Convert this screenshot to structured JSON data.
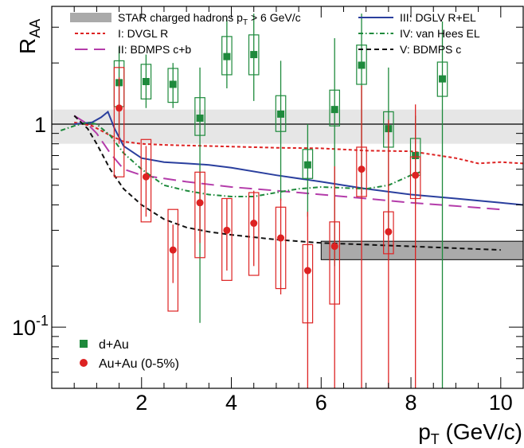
{
  "chart_data": {
    "type": "scatter",
    "xlabel": {
      "main": "p",
      "sub": "T",
      "rest": " (GeV/c)"
    },
    "ylabel": {
      "main": "R",
      "sub": "AA"
    },
    "xlim": [
      0,
      10.5
    ],
    "ylim": [
      0.05,
      3.8
    ],
    "y_scale": "log",
    "x_ticks": [
      2,
      4,
      6,
      8,
      10
    ],
    "x_tick_labels": [
      "2",
      "4",
      "6",
      "8",
      "10"
    ],
    "y_ticks": [
      {
        "value": 0.1,
        "base": "10",
        "exp": "-1"
      },
      {
        "value": 1,
        "base": "1",
        "exp": ""
      }
    ],
    "reference_line": 1,
    "normalization_band": {
      "x_start": 0,
      "x_end": 10.5,
      "ymin": 0.8,
      "ymax": 1.18
    },
    "star_band": {
      "label": "STAR charged hadrons p",
      "label_sub": "T",
      "label_rest": " > 6 GeV/c",
      "x_start": 6,
      "x_end": 10.5,
      "ymin": 0.215,
      "ymax": 0.265,
      "color": "#aaaaaa"
    },
    "series": [
      {
        "name": "d+Au",
        "kind": "points",
        "marker": "square",
        "color": "#1e8a3c",
        "points": [
          {
            "x": 1.5,
            "y": 1.6,
            "err_lo": 0.85,
            "err_hi": 2.4,
            "sys_lo": 1.22,
            "sys_hi": 2.05,
            "box_w": 0.22
          },
          {
            "x": 2.1,
            "y": 1.62,
            "err_lo": 1.2,
            "err_hi": 2.2,
            "sys_lo": 1.33,
            "sys_hi": 1.97,
            "box_w": 0.22
          },
          {
            "x": 2.7,
            "y": 1.57,
            "err_lo": 1.2,
            "err_hi": 2.0,
            "sys_lo": 1.28,
            "sys_hi": 1.88,
            "box_w": 0.22
          },
          {
            "x": 3.3,
            "y": 1.07,
            "err_lo": 0.105,
            "err_hi": 1.9,
            "sys_lo": 0.88,
            "sys_hi": 1.35,
            "box_w": 0.22
          },
          {
            "x": 3.9,
            "y": 2.15,
            "err_lo": 1.5,
            "err_hi": 3.3,
            "sys_lo": 1.75,
            "sys_hi": 2.7,
            "box_w": 0.22
          },
          {
            "x": 4.5,
            "y": 2.2,
            "err_lo": 1.3,
            "err_hi": 3.5,
            "sys_lo": 1.75,
            "sys_hi": 2.75,
            "box_w": 0.22
          },
          {
            "x": 5.1,
            "y": 1.12,
            "err_lo": 0.42,
            "err_hi": 2.05,
            "sys_lo": 0.92,
            "sys_hi": 1.38,
            "box_w": 0.22
          },
          {
            "x": 5.7,
            "y": 0.63,
            "err_lo": 0.35,
            "err_hi": 1.0,
            "sys_lo": 0.54,
            "sys_hi": 0.75,
            "box_w": 0.22
          },
          {
            "x": 6.3,
            "y": 1.18,
            "err_lo": 0.2,
            "err_hi": 2.65,
            "sys_lo": 0.98,
            "sys_hi": 1.47,
            "box_w": 0.22
          },
          {
            "x": 6.9,
            "y": 1.95,
            "err_lo": 0.45,
            "err_hi": 3.5,
            "sys_lo": 1.57,
            "sys_hi": 2.45,
            "box_w": 0.22
          },
          {
            "x": 7.5,
            "y": 0.95,
            "err_lo": 0.27,
            "err_hi": 1.9,
            "sys_lo": 0.77,
            "sys_hi": 1.15,
            "box_w": 0.22
          },
          {
            "x": 8.1,
            "y": 0.7,
            "err_lo": 0.4,
            "err_hi": 1.1,
            "sys_lo": 0.56,
            "sys_hi": 0.85,
            "box_w": 0.22
          },
          {
            "x": 8.7,
            "y": 1.67,
            "err_lo": 0.05,
            "err_hi": 3.2,
            "sys_lo": 1.37,
            "sys_hi": 2.02,
            "box_w": 0.22
          }
        ]
      },
      {
        "name": "Au+Au (0-5%)",
        "kind": "points",
        "marker": "circle",
        "color": "#dd2222",
        "points": [
          {
            "x": 1.5,
            "y": 1.2,
            "err_lo": 0.8,
            "err_hi": 1.7,
            "sys_lo": 0.55,
            "sys_hi": 1.9,
            "box_w": 0.22
          },
          {
            "x": 2.1,
            "y": 0.55,
            "err_lo": 0.35,
            "err_hi": 0.78,
            "sys_lo": 0.33,
            "sys_hi": 0.84,
            "box_w": 0.22
          },
          {
            "x": 2.7,
            "y": 0.24,
            "err_lo": 0.165,
            "err_hi": 0.32,
            "sys_lo": 0.12,
            "sys_hi": 0.38,
            "box_w": 0.22
          },
          {
            "x": 3.3,
            "y": 0.41,
            "err_lo": 0.26,
            "err_hi": 0.58,
            "sys_lo": 0.22,
            "sys_hi": 0.58,
            "box_w": 0.22
          },
          {
            "x": 3.9,
            "y": 0.3,
            "err_lo": 0.19,
            "err_hi": 0.43,
            "sys_lo": 0.17,
            "sys_hi": 0.43,
            "box_w": 0.22
          },
          {
            "x": 4.5,
            "y": 0.325,
            "err_lo": 0.2,
            "err_hi": 0.47,
            "sys_lo": 0.18,
            "sys_hi": 0.46,
            "box_w": 0.22
          },
          {
            "x": 5.1,
            "y": 0.275,
            "err_lo": 0.145,
            "err_hi": 0.43,
            "sys_lo": 0.155,
            "sys_hi": 0.39,
            "box_w": 0.22
          },
          {
            "x": 5.7,
            "y": 0.19,
            "err_lo": 0.05,
            "err_hi": 0.37,
            "sys_lo": 0.105,
            "sys_hi": 0.255,
            "box_w": 0.22
          },
          {
            "x": 6.3,
            "y": 0.25,
            "err_lo": 0.05,
            "err_hi": 0.62,
            "sys_lo": 0.13,
            "sys_hi": 0.33,
            "box_w": 0.22
          },
          {
            "x": 6.9,
            "y": 0.6,
            "err_lo": 0.05,
            "err_hi": 1.55,
            "sys_lo": 0.44,
            "sys_hi": 0.77,
            "box_w": 0.22
          },
          {
            "x": 7.5,
            "y": 0.295,
            "err_lo": 0.05,
            "err_hi": 1.05,
            "sys_lo": 0.23,
            "sys_hi": 0.37,
            "box_w": 0.22
          },
          {
            "x": 8.1,
            "y": 0.56,
            "err_lo": 0.05,
            "err_hi": 1.25,
            "sys_lo": 0.43,
            "sys_hi": 0.69,
            "box_w": 0.22
          }
        ]
      },
      {
        "name": "I: DVGL R",
        "kind": "curve",
        "color": "#dd2222",
        "dash": "4,3",
        "x": [
          0.5,
          0.9,
          1.3,
          1.6,
          2.0,
          2.5,
          3.0,
          4.0,
          5.0,
          6.0,
          7.0,
          8.0,
          9.0,
          9.5,
          10.0,
          10.5
        ],
        "y": [
          1.02,
          0.98,
          0.88,
          0.82,
          0.8,
          0.79,
          0.785,
          0.775,
          0.765,
          0.76,
          0.74,
          0.735,
          0.68,
          0.64,
          0.65,
          0.64
        ]
      },
      {
        "name": "II: BDMPS c+b",
        "kind": "curve",
        "color": "#b43caa",
        "dash": "16,8",
        "x": [
          0.5,
          0.8,
          1.0,
          1.3,
          1.6,
          2.0,
          2.5,
          3.0,
          4.0,
          5.0,
          6.0,
          7.0,
          8.0,
          9.0,
          10.0
        ],
        "y": [
          1.1,
          1.0,
          0.9,
          0.72,
          0.6,
          0.56,
          0.54,
          0.52,
          0.49,
          0.47,
          0.45,
          0.43,
          0.41,
          0.395,
          0.38
        ]
      },
      {
        "name": "III: DGLV R+EL",
        "kind": "curve",
        "color": "#2a3f9e",
        "dash": "",
        "x": [
          0.5,
          0.9,
          1.1,
          1.25,
          1.4,
          1.6,
          2.0,
          2.5,
          3.0,
          3.5,
          4.0,
          5.0,
          6.0,
          7.0,
          8.0,
          9.0,
          10.0,
          10.5
        ],
        "y": [
          1.0,
          1.02,
          1.08,
          1.15,
          0.95,
          0.78,
          0.68,
          0.65,
          0.64,
          0.63,
          0.61,
          0.56,
          0.52,
          0.48,
          0.45,
          0.43,
          0.41,
          0.4
        ]
      },
      {
        "name": "IV: van Hees EL",
        "kind": "curve",
        "color": "#1e8a3c",
        "dash": "6,3,1.5,3",
        "x": [
          0.2,
          0.5,
          0.8,
          1.0,
          1.3,
          1.6,
          2.0,
          2.5,
          3.0,
          3.5,
          4.0,
          4.5,
          5.0,
          5.5,
          6.0,
          7.0,
          7.5,
          8.0,
          8.2
        ],
        "y": [
          0.93,
          0.98,
          1.02,
          1.0,
          0.88,
          0.72,
          0.6,
          0.5,
          0.47,
          0.45,
          0.44,
          0.44,
          0.46,
          0.48,
          0.49,
          0.48,
          0.5,
          0.56,
          0.58
        ]
      },
      {
        "name": "V: BDMPS c",
        "kind": "curve",
        "color": "#111111",
        "dash": "6,4",
        "x": [
          0.5,
          0.8,
          1.0,
          1.3,
          1.6,
          2.0,
          2.5,
          3.0,
          3.5,
          4.0,
          5.0,
          6.0,
          7.0,
          8.0,
          9.0,
          10.0
        ],
        "y": [
          1.1,
          0.95,
          0.8,
          0.6,
          0.48,
          0.4,
          0.34,
          0.31,
          0.295,
          0.285,
          0.27,
          0.26,
          0.255,
          0.25,
          0.245,
          0.24
        ]
      }
    ],
    "legend_top": [
      {
        "text": "STAR charged hadrons p",
        "sub": "T",
        "rest": " > 6 GeV/c",
        "symbol": "band",
        "color": "#aaaaaa"
      },
      {
        "text": "III: DGLV R+EL",
        "symbol": "line",
        "color": "#2a3f9e",
        "dash": ""
      },
      {
        "text": "I: DVGL R",
        "symbol": "line",
        "color": "#dd2222",
        "dash": "4,3"
      },
      {
        "text": "IV: van Hees EL",
        "symbol": "line",
        "color": "#1e8a3c",
        "dash": "6,3,1.5,3"
      },
      {
        "text": "II: BDMPS c+b",
        "symbol": "line",
        "color": "#b43caa",
        "dash": "16,8"
      },
      {
        "text": "V: BDMPS c",
        "symbol": "line",
        "color": "#111111",
        "dash": "6,4"
      }
    ],
    "legend_bottom": [
      {
        "text": "d+Au",
        "marker": "square",
        "color": "#1e8a3c"
      },
      {
        "text": "Au+Au (0-5%)",
        "marker": "circle",
        "color": "#dd2222"
      }
    ]
  }
}
